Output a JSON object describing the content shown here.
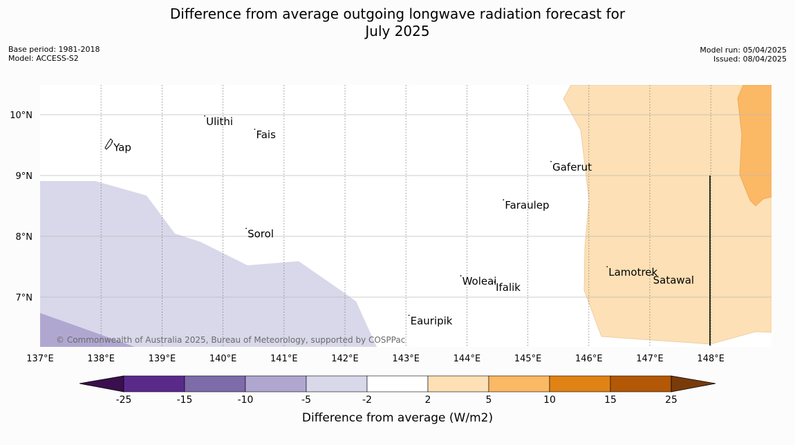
{
  "title_line1": "Difference from average outgoing longwave radiation forecast for",
  "title_line2": "July 2025",
  "base_period": "Base period: 1981-2018",
  "model": "Model: ACCESS-S2",
  "model_run": "Model run: 05/04/2025",
  "issued": "Issued: 08/04/2025",
  "copyright": "© Commonwealth of Australia 2025, Bureau of Meteorology, supported by COSPPac",
  "lon_ticks": [
    "137°E",
    "138°E",
    "139°E",
    "140°E",
    "141°E",
    "142°E",
    "143°E",
    "144°E",
    "145°E",
    "146°E",
    "147°E",
    "148°E"
  ],
  "lat_ticks": [
    "10°N",
    "9°N",
    "8°N",
    "7°N"
  ],
  "places": [
    {
      "name": "Yap",
      "lon": 138.18,
      "lat": 9.55
    },
    {
      "name": "Ulithi",
      "lon": 139.7,
      "lat": 9.98
    },
    {
      "name": "Fais",
      "lon": 140.52,
      "lat": 9.76
    },
    {
      "name": "Gaferut",
      "lon": 145.38,
      "lat": 9.23
    },
    {
      "name": "Faraulep",
      "lon": 144.6,
      "lat": 8.6
    },
    {
      "name": "Sorol",
      "lon": 140.38,
      "lat": 8.13
    },
    {
      "name": "Woleai",
      "lon": 143.9,
      "lat": 7.35
    },
    {
      "name": "Ifalik",
      "lon": 144.45,
      "lat": 7.25
    },
    {
      "name": "Lamotrek",
      "lon": 146.3,
      "lat": 7.5
    },
    {
      "name": "Satawal",
      "lon": 147.03,
      "lat": 7.37
    },
    {
      "name": "Eauripik",
      "lon": 143.05,
      "lat": 6.7
    }
  ],
  "colorbar": {
    "label": "Difference from average (W/m2)",
    "ticks": [
      "-25",
      "-15",
      "-10",
      "-5",
      "-2",
      "2",
      "5",
      "10",
      "15",
      "25"
    ],
    "colors": [
      "#3b0f4e",
      "#5a2a8a",
      "#7e6ba9",
      "#b0a7d1",
      "#d8d8ea",
      "#ffffff",
      "#fde0b5",
      "#fbb865",
      "#e08214",
      "#b35806",
      "#7a3b0a"
    ]
  }
}
